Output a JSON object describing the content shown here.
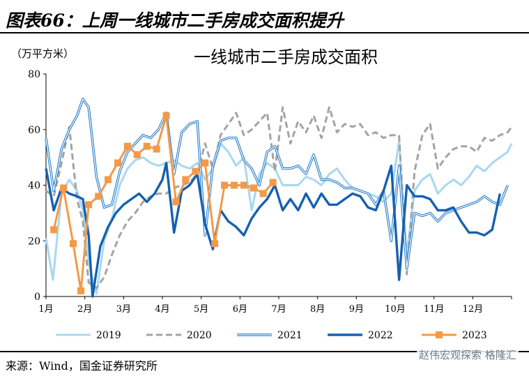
{
  "figure_title": "图表66：上周一线城市二手房成交面积提升",
  "source": "来源：Wind，国金证券研究所",
  "watermark": "赵伟宏观探索 格隆汇",
  "chart_data": {
    "type": "line",
    "title": "一线城市二手房成交面积",
    "unit_label": "（万平方米）",
    "ylim": [
      0,
      80
    ],
    "yticks": [
      "0",
      "20",
      "40",
      "60",
      "80"
    ],
    "xlim": [
      1,
      13
    ],
    "xticks": [
      {
        "x": 1,
        "label": "1月"
      },
      {
        "x": 2,
        "label": "2月"
      },
      {
        "x": 3,
        "label": "3月"
      },
      {
        "x": 4,
        "label": "4月"
      },
      {
        "x": 5,
        "label": "5月"
      },
      {
        "x": 6,
        "label": "6月"
      },
      {
        "x": 7,
        "label": "7月"
      },
      {
        "x": 8,
        "label": "8月"
      },
      {
        "x": 9,
        "label": "9月"
      },
      {
        "x": 10,
        "label": "10月"
      },
      {
        "x": 11,
        "label": "11月"
      },
      {
        "x": 12,
        "label": "12月"
      }
    ],
    "x_unit": "month",
    "legend_position": "bottom",
    "grid": false,
    "series": [
      {
        "name": "2019",
        "color": "#a8d8f0",
        "style": "solid",
        "points": [
          [
            1.0,
            21
          ],
          [
            1.18,
            6
          ],
          [
            1.4,
            37
          ],
          [
            1.6,
            42
          ],
          [
            1.8,
            38
          ],
          [
            1.95,
            31
          ],
          [
            2.1,
            12
          ],
          [
            2.3,
            1
          ],
          [
            2.5,
            20
          ],
          [
            2.7,
            28
          ],
          [
            2.9,
            40
          ],
          [
            3.1,
            46
          ],
          [
            3.3,
            49
          ],
          [
            3.5,
            50
          ],
          [
            3.7,
            48
          ],
          [
            3.9,
            47
          ],
          [
            4.1,
            48
          ],
          [
            4.3,
            49
          ],
          [
            4.5,
            47
          ],
          [
            4.7,
            46
          ],
          [
            4.9,
            48
          ],
          [
            5.1,
            42
          ],
          [
            5.3,
            46
          ],
          [
            5.5,
            55
          ],
          [
            5.7,
            52
          ],
          [
            5.9,
            47
          ],
          [
            6.1,
            50
          ],
          [
            6.3,
            31
          ],
          [
            6.5,
            44
          ],
          [
            6.7,
            48
          ],
          [
            6.9,
            46
          ],
          [
            7.1,
            40
          ],
          [
            7.3,
            40
          ],
          [
            7.5,
            40
          ],
          [
            7.7,
            43
          ],
          [
            7.9,
            42
          ],
          [
            8.1,
            40
          ],
          [
            8.3,
            44
          ],
          [
            8.5,
            46
          ],
          [
            8.7,
            42
          ],
          [
            8.9,
            39
          ],
          [
            9.1,
            38
          ],
          [
            9.3,
            37
          ],
          [
            9.5,
            36
          ],
          [
            9.7,
            34
          ],
          [
            9.9,
            37
          ],
          [
            10.1,
            56
          ],
          [
            10.3,
            15
          ],
          [
            10.5,
            38
          ],
          [
            10.7,
            42
          ],
          [
            10.9,
            44
          ],
          [
            11.1,
            37
          ],
          [
            11.3,
            40
          ],
          [
            11.5,
            42
          ],
          [
            11.7,
            40
          ],
          [
            11.9,
            43
          ],
          [
            12.1,
            47
          ],
          [
            12.3,
            45
          ],
          [
            12.5,
            48
          ],
          [
            12.7,
            50
          ],
          [
            12.9,
            52
          ],
          [
            13.0,
            55
          ]
        ]
      },
      {
        "name": "2020",
        "color": "#a3a3a3",
        "style": "dashed",
        "points": [
          [
            1.0,
            38
          ],
          [
            1.2,
            36
          ],
          [
            1.4,
            48
          ],
          [
            1.6,
            61
          ],
          [
            1.8,
            35
          ],
          [
            1.95,
            27
          ],
          [
            2.1,
            5
          ],
          [
            2.3,
            3
          ],
          [
            2.5,
            7
          ],
          [
            2.7,
            15
          ],
          [
            2.9,
            22
          ],
          [
            3.1,
            27
          ],
          [
            3.3,
            30
          ],
          [
            3.5,
            34
          ],
          [
            3.7,
            36
          ],
          [
            3.9,
            37
          ],
          [
            4.1,
            37
          ],
          [
            4.3,
            39
          ],
          [
            4.5,
            40
          ],
          [
            4.7,
            41
          ],
          [
            4.9,
            44
          ],
          [
            5.1,
            55
          ],
          [
            5.3,
            46
          ],
          [
            5.5,
            58
          ],
          [
            5.7,
            62
          ],
          [
            5.9,
            66
          ],
          [
            6.1,
            58
          ],
          [
            6.3,
            60
          ],
          [
            6.5,
            63
          ],
          [
            6.7,
            66
          ],
          [
            6.9,
            45
          ],
          [
            7.1,
            68
          ],
          [
            7.3,
            55
          ],
          [
            7.5,
            63
          ],
          [
            7.7,
            59
          ],
          [
            7.9,
            65
          ],
          [
            8.1,
            57
          ],
          [
            8.3,
            68
          ],
          [
            8.5,
            59
          ],
          [
            8.7,
            62
          ],
          [
            8.9,
            61
          ],
          [
            9.1,
            62
          ],
          [
            9.3,
            58
          ],
          [
            9.5,
            59
          ],
          [
            9.7,
            57
          ],
          [
            9.9,
            58
          ],
          [
            10.1,
            58
          ],
          [
            10.3,
            8
          ],
          [
            10.5,
            45
          ],
          [
            10.7,
            58
          ],
          [
            10.9,
            62
          ],
          [
            11.1,
            46
          ],
          [
            11.3,
            50
          ],
          [
            11.5,
            53
          ],
          [
            11.7,
            54
          ],
          [
            11.9,
            54
          ],
          [
            12.1,
            52
          ],
          [
            12.3,
            57
          ],
          [
            12.5,
            56
          ],
          [
            12.7,
            58
          ],
          [
            12.9,
            59
          ],
          [
            13.0,
            61
          ]
        ]
      },
      {
        "name": "2021",
        "color": "#1f78c8",
        "style": "double",
        "points": [
          [
            1.0,
            57
          ],
          [
            1.2,
            38
          ],
          [
            1.4,
            53
          ],
          [
            1.6,
            60
          ],
          [
            1.8,
            65
          ],
          [
            1.95,
            71
          ],
          [
            2.1,
            68
          ],
          [
            2.3,
            43
          ],
          [
            2.5,
            32
          ],
          [
            2.7,
            33
          ],
          [
            2.9,
            45
          ],
          [
            3.1,
            52
          ],
          [
            3.3,
            55
          ],
          [
            3.5,
            58
          ],
          [
            3.7,
            57
          ],
          [
            3.9,
            60
          ],
          [
            4.1,
            66
          ],
          [
            4.3,
            44
          ],
          [
            4.5,
            59
          ],
          [
            4.7,
            62
          ],
          [
            4.9,
            63
          ],
          [
            5.1,
            22
          ],
          [
            5.3,
            47
          ],
          [
            5.5,
            56
          ],
          [
            5.7,
            57
          ],
          [
            5.9,
            57
          ],
          [
            6.1,
            49
          ],
          [
            6.3,
            46
          ],
          [
            6.5,
            40
          ],
          [
            6.7,
            52
          ],
          [
            6.9,
            54
          ],
          [
            7.1,
            46
          ],
          [
            7.3,
            46
          ],
          [
            7.5,
            47
          ],
          [
            7.7,
            44
          ],
          [
            7.9,
            51
          ],
          [
            8.1,
            42
          ],
          [
            8.3,
            42
          ],
          [
            8.5,
            41
          ],
          [
            8.7,
            39
          ],
          [
            8.9,
            39
          ],
          [
            9.1,
            38
          ],
          [
            9.3,
            37
          ],
          [
            9.5,
            33
          ],
          [
            9.7,
            38
          ],
          [
            9.9,
            20
          ],
          [
            10.1,
            47
          ],
          [
            10.3,
            10
          ],
          [
            10.5,
            30
          ],
          [
            10.7,
            29
          ],
          [
            10.9,
            30
          ],
          [
            11.1,
            27
          ],
          [
            11.3,
            30
          ],
          [
            11.5,
            31
          ],
          [
            11.7,
            32
          ],
          [
            11.9,
            33
          ],
          [
            12.1,
            34
          ],
          [
            12.3,
            36
          ],
          [
            12.5,
            34
          ],
          [
            12.7,
            33
          ],
          [
            12.9,
            40
          ]
        ]
      },
      {
        "name": "2022",
        "color": "#1560b0",
        "style": "solid-thick",
        "points": [
          [
            1.0,
            46
          ],
          [
            1.2,
            31
          ],
          [
            1.4,
            39
          ],
          [
            1.6,
            37
          ],
          [
            1.8,
            36
          ],
          [
            1.95,
            35
          ],
          [
            2.1,
            22
          ],
          [
            2.2,
            0
          ],
          [
            2.4,
            18
          ],
          [
            2.6,
            25
          ],
          [
            2.8,
            30
          ],
          [
            3.0,
            33
          ],
          [
            3.2,
            35
          ],
          [
            3.4,
            37
          ],
          [
            3.6,
            34
          ],
          [
            3.8,
            37
          ],
          [
            4.0,
            42
          ],
          [
            4.1,
            48
          ],
          [
            4.3,
            23
          ],
          [
            4.5,
            38
          ],
          [
            4.7,
            40
          ],
          [
            4.9,
            44
          ],
          [
            5.1,
            26
          ],
          [
            5.3,
            17
          ],
          [
            5.5,
            31
          ],
          [
            5.7,
            27
          ],
          [
            5.9,
            25
          ],
          [
            6.1,
            22
          ],
          [
            6.3,
            28
          ],
          [
            6.5,
            32
          ],
          [
            6.7,
            35
          ],
          [
            6.9,
            40
          ],
          [
            7.1,
            31
          ],
          [
            7.3,
            35
          ],
          [
            7.5,
            31
          ],
          [
            7.7,
            37
          ],
          [
            7.9,
            32
          ],
          [
            8.1,
            37
          ],
          [
            8.3,
            33
          ],
          [
            8.5,
            33
          ],
          [
            8.7,
            35
          ],
          [
            8.9,
            37
          ],
          [
            9.1,
            36
          ],
          [
            9.3,
            32
          ],
          [
            9.5,
            31
          ],
          [
            9.7,
            38
          ],
          [
            9.9,
            47
          ],
          [
            10.1,
            6
          ],
          [
            10.3,
            40
          ],
          [
            10.5,
            36
          ],
          [
            10.7,
            36
          ],
          [
            10.9,
            35
          ],
          [
            11.1,
            31
          ],
          [
            11.3,
            31
          ],
          [
            11.5,
            32
          ],
          [
            11.7,
            27
          ],
          [
            11.9,
            23
          ],
          [
            12.1,
            23
          ],
          [
            12.3,
            22
          ],
          [
            12.5,
            24
          ],
          [
            12.7,
            37
          ]
        ]
      },
      {
        "name": "2023",
        "color": "#f29a48",
        "style": "marker",
        "points": [
          [
            1.2,
            24
          ],
          [
            1.45,
            39
          ],
          [
            1.7,
            19
          ],
          [
            1.9,
            2
          ],
          [
            2.1,
            33
          ],
          [
            2.35,
            36
          ],
          [
            2.6,
            42
          ],
          [
            2.85,
            48
          ],
          [
            3.1,
            54
          ],
          [
            3.35,
            51
          ],
          [
            3.6,
            54
          ],
          [
            3.85,
            53
          ],
          [
            4.1,
            65
          ],
          [
            4.35,
            34
          ],
          [
            4.6,
            42
          ],
          [
            4.85,
            45
          ],
          [
            5.1,
            48
          ],
          [
            5.35,
            19
          ],
          [
            5.6,
            40
          ],
          [
            5.85,
            40
          ],
          [
            6.1,
            40
          ],
          [
            6.35,
            39
          ],
          [
            6.6,
            37
          ],
          [
            6.85,
            41
          ]
        ]
      }
    ]
  }
}
